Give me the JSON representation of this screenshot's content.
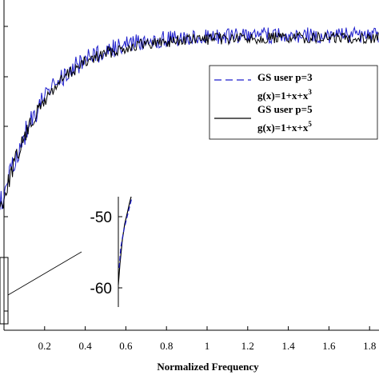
{
  "chart_data": {
    "type": "line",
    "xlabel": "Normalized Frequency",
    "ylabel": "",
    "xlim": [
      0,
      1.83
    ],
    "x_ticks": [
      "0.2",
      "0.4",
      "0.6",
      "0.8",
      "1",
      "1.2",
      "1.4",
      "1.6",
      "1.8"
    ],
    "grid": false,
    "legend_position": "right",
    "series": [
      {
        "name_line1": "GS user p=3",
        "name_line2_base": "g(x)=1+x+x",
        "name_line2_exp": "3",
        "color": "#1f1fcc",
        "style": "dashed"
      },
      {
        "name_line1": "GS user p=5",
        "name_line2_base": "g(x)=1+x+x",
        "name_line2_exp": "5",
        "color": "#000000",
        "style": "solid"
      }
    ],
    "inset": {
      "y_ticks": [
        "-50",
        "-60"
      ]
    }
  }
}
